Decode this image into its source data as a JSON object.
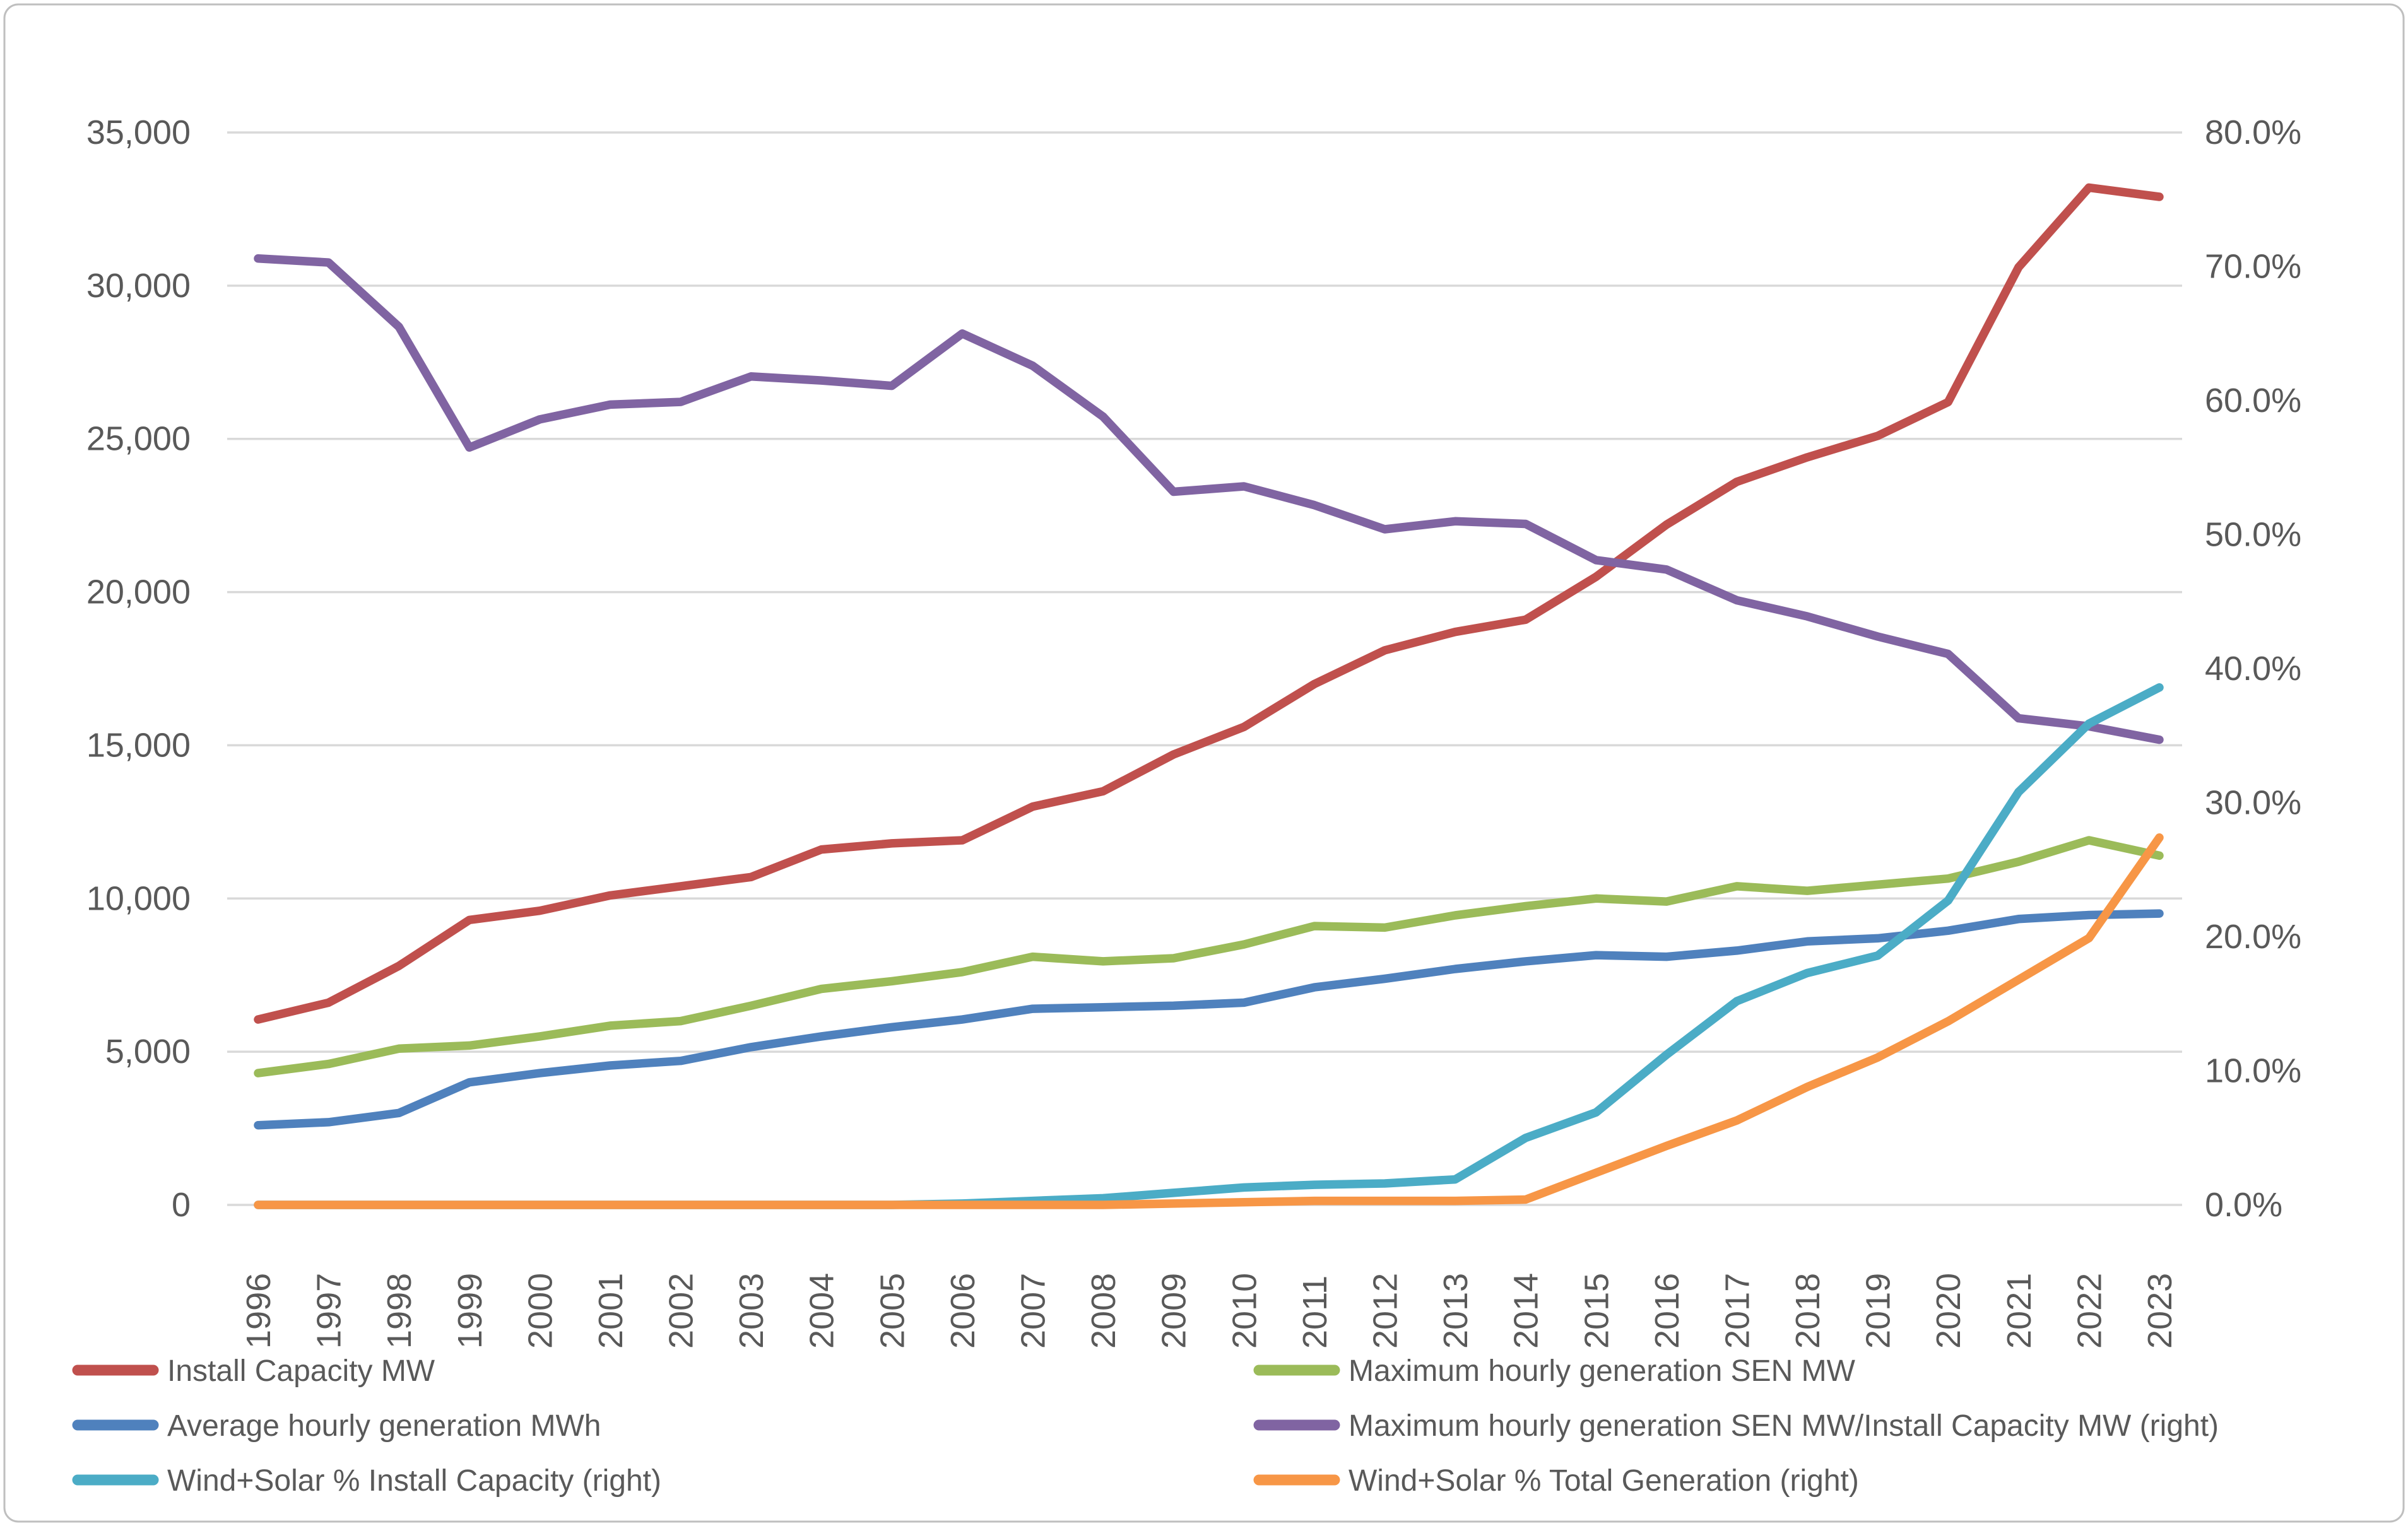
{
  "page": {
    "background": "#ffffff",
    "border_color": "#BFBFBF",
    "text_color": "#595959",
    "gridline_color": "#D9D9D9"
  },
  "chart_data": {
    "type": "line",
    "title": "",
    "xlabel": "",
    "ylabel": "",
    "grid": "horizontal",
    "legend_position": "bottom, two columns, three rows",
    "x_categories": [
      "1996",
      "1997",
      "1998",
      "1999",
      "2000",
      "2001",
      "2002",
      "2003",
      "2004",
      "2005",
      "2006",
      "2007",
      "2008",
      "2009",
      "2010",
      "2011",
      "2012",
      "2013",
      "2014",
      "2015",
      "2016",
      "2017",
      "2018",
      "2019",
      "2020",
      "2021",
      "2022",
      "2023"
    ],
    "left_axis": {
      "min": 0,
      "max": 35000,
      "tick_interval": 5000,
      "tick_labels": [
        "0",
        "5,000",
        "10,000",
        "15,000",
        "20,000",
        "25,000",
        "30,000",
        "35,000"
      ]
    },
    "right_axis": {
      "min": 0,
      "max": 80,
      "tick_interval": 10,
      "tick_labels": [
        "0.0%",
        "10.0%",
        "20.0%",
        "30.0%",
        "40.0%",
        "50.0%",
        "60.0%",
        "70.0%",
        "80.0%"
      ]
    },
    "series": [
      {
        "name": "Install Capacity MW",
        "color": "#C0504D",
        "axis": "left",
        "values": [
          6050,
          6600,
          7800,
          9300,
          9600,
          10100,
          10400,
          10700,
          11600,
          11800,
          11900,
          13000,
          13500,
          14700,
          15600,
          17000,
          18100,
          18700,
          19100,
          20500,
          22200,
          23600,
          24400,
          25100,
          26200,
          30600,
          33200,
          32900
        ]
      },
      {
        "name": "Maximum hourly generation SEN MW",
        "color": "#9BBB59",
        "axis": "left",
        "values": [
          4300,
          4600,
          5100,
          5200,
          5500,
          5850,
          6000,
          6500,
          7050,
          7300,
          7600,
          8100,
          7950,
          8050,
          8500,
          9100,
          9050,
          9450,
          9750,
          10000,
          9900,
          10400,
          10250,
          10450,
          10650,
          11200,
          11900,
          11400
        ]
      },
      {
        "name": "Average hourly generation MWh",
        "color": "#4F81BD",
        "axis": "left",
        "values": [
          2600,
          2700,
          3000,
          4000,
          4300,
          4550,
          4700,
          5150,
          5500,
          5800,
          6050,
          6400,
          6450,
          6500,
          6600,
          7100,
          7380,
          7700,
          7950,
          8150,
          8100,
          8300,
          8600,
          8700,
          8950,
          9330,
          9460,
          9510
        ]
      },
      {
        "name": "Maximum hourly generation SEN MW/Install Capacity MW (right)",
        "color": "#8064A2",
        "axis": "right",
        "values": [
          70.6,
          70.3,
          65.5,
          56.5,
          58.6,
          59.7,
          59.9,
          61.8,
          61.5,
          61.1,
          65.0,
          62.6,
          58.8,
          53.2,
          53.6,
          52.2,
          50.4,
          51.0,
          50.8,
          48.1,
          47.4,
          45.1,
          43.9,
          42.4,
          41.1,
          36.3,
          35.7,
          34.7
        ]
      },
      {
        "name": "Wind+Solar % Install Capacity (right)",
        "color": "#4BACC6",
        "axis": "right",
        "values": [
          0,
          0,
          0,
          0,
          0,
          0,
          0,
          0,
          0,
          0,
          0.1,
          0.3,
          0.5,
          0.9,
          1.3,
          1.5,
          1.6,
          1.9,
          5.0,
          6.9,
          11.2,
          15.2,
          17.3,
          18.6,
          22.7,
          30.8,
          35.9,
          38.6
        ]
      },
      {
        "name": "Wind+Solar % Total Generation (right)",
        "color": "#F79646",
        "axis": "right",
        "values": [
          0,
          0,
          0,
          0,
          0,
          0,
          0,
          0,
          0,
          0,
          0,
          0,
          0,
          0.1,
          0.2,
          0.3,
          0.3,
          0.3,
          0.4,
          2.4,
          4.4,
          6.3,
          8.8,
          11.0,
          13.7,
          16.8,
          19.9,
          27.4
        ]
      }
    ],
    "legend_rows": [
      [
        0,
        1
      ],
      [
        2,
        3
      ],
      [
        4,
        5
      ]
    ]
  }
}
